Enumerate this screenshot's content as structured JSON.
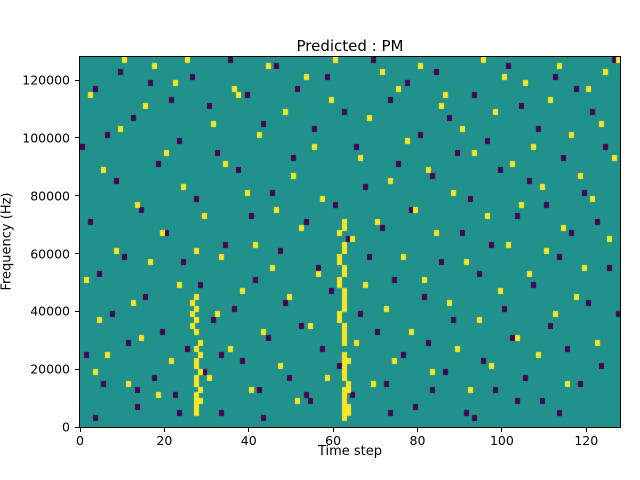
{
  "chart_data": {
    "type": "heatmap",
    "title": "Predicted : PM",
    "xlabel": "Time step",
    "ylabel": "Frequency (Hz)",
    "xlim": [
      0,
      128
    ],
    "ylim": [
      0,
      128000
    ],
    "x_ticks": [
      0,
      20,
      40,
      60,
      80,
      100,
      120
    ],
    "y_ticks": [
      0,
      20000,
      40000,
      60000,
      80000,
      100000,
      120000
    ],
    "grid": {
      "cols": 128,
      "rows": 64,
      "freq_step_hz": 2000
    },
    "colors": {
      "background": "#21918c",
      "high": "#fde725",
      "low": "#440154"
    },
    "legend": "none",
    "yellow_cells": [
      [
        62,
        1
      ],
      [
        62,
        2
      ],
      [
        62,
        3
      ],
      [
        62,
        4
      ],
      [
        62,
        5
      ],
      [
        62,
        6
      ],
      [
        62,
        8
      ],
      [
        62,
        9
      ],
      [
        62,
        10
      ],
      [
        62,
        11
      ],
      [
        62,
        12
      ],
      [
        62,
        14
      ],
      [
        62,
        15
      ],
      [
        62,
        16
      ],
      [
        62,
        17
      ],
      [
        62,
        20
      ],
      [
        62,
        21
      ],
      [
        62,
        22
      ],
      [
        62,
        23
      ],
      [
        62,
        26
      ],
      [
        62,
        27
      ],
      [
        62,
        30
      ],
      [
        62,
        31
      ],
      [
        62,
        34
      ],
      [
        62,
        35
      ],
      [
        61,
        18
      ],
      [
        61,
        19
      ],
      [
        61,
        24
      ],
      [
        61,
        25
      ],
      [
        61,
        28
      ],
      [
        61,
        29
      ],
      [
        61,
        33
      ],
      [
        63,
        2
      ],
      [
        63,
        3
      ],
      [
        63,
        6
      ],
      [
        63,
        7
      ],
      [
        63,
        11
      ],
      [
        27,
        2
      ],
      [
        27,
        3
      ],
      [
        27,
        4
      ],
      [
        27,
        5
      ],
      [
        27,
        7
      ],
      [
        27,
        8
      ],
      [
        27,
        10
      ],
      [
        27,
        11
      ],
      [
        27,
        13
      ],
      [
        27,
        16
      ],
      [
        27,
        18
      ],
      [
        27,
        20
      ],
      [
        27,
        22
      ],
      [
        27,
        30
      ],
      [
        28,
        4
      ],
      [
        28,
        6
      ],
      [
        28,
        9
      ],
      [
        28,
        12
      ],
      [
        28,
        14
      ],
      [
        26,
        17
      ],
      [
        26,
        19
      ],
      [
        26,
        21
      ],
      [
        1,
        25
      ],
      [
        2,
        57
      ],
      [
        3,
        9
      ],
      [
        4,
        18
      ],
      [
        5,
        44
      ],
      [
        6,
        12
      ],
      [
        8,
        30
      ],
      [
        9,
        51
      ],
      [
        10,
        63
      ],
      [
        11,
        7
      ],
      [
        12,
        21
      ],
      [
        13,
        38
      ],
      [
        14,
        15
      ],
      [
        15,
        55
      ],
      [
        16,
        28
      ],
      [
        17,
        62
      ],
      [
        18,
        5
      ],
      [
        19,
        33
      ],
      [
        20,
        47
      ],
      [
        21,
        11
      ],
      [
        22,
        59
      ],
      [
        23,
        24
      ],
      [
        24,
        41
      ],
      [
        25,
        63
      ],
      [
        29,
        36
      ],
      [
        30,
        8
      ],
      [
        31,
        52
      ],
      [
        32,
        19
      ],
      [
        33,
        29
      ],
      [
        34,
        45
      ],
      [
        35,
        13
      ],
      [
        36,
        58
      ],
      [
        37,
        57
      ],
      [
        38,
        23
      ],
      [
        39,
        40
      ],
      [
        40,
        6
      ],
      [
        41,
        31
      ],
      [
        42,
        50
      ],
      [
        43,
        16
      ],
      [
        44,
        62
      ],
      [
        45,
        27
      ],
      [
        46,
        37
      ],
      [
        47,
        10
      ],
      [
        48,
        54
      ],
      [
        49,
        22
      ],
      [
        50,
        43
      ],
      [
        51,
        4
      ],
      [
        52,
        34
      ],
      [
        53,
        60
      ],
      [
        54,
        17
      ],
      [
        55,
        48
      ],
      [
        56,
        26
      ],
      [
        57,
        39
      ],
      [
        58,
        8
      ],
      [
        59,
        56
      ],
      [
        60,
        63
      ],
      [
        64,
        32
      ],
      [
        65,
        14
      ],
      [
        66,
        46
      ],
      [
        67,
        24
      ],
      [
        68,
        53
      ],
      [
        69,
        7
      ],
      [
        70,
        35
      ],
      [
        71,
        61
      ],
      [
        72,
        20
      ],
      [
        73,
        42
      ],
      [
        74,
        11
      ],
      [
        75,
        58
      ],
      [
        76,
        29
      ],
      [
        77,
        49
      ],
      [
        78,
        16
      ],
      [
        79,
        37
      ],
      [
        80,
        62
      ],
      [
        81,
        25
      ],
      [
        82,
        44
      ],
      [
        83,
        9
      ],
      [
        84,
        33
      ],
      [
        85,
        55
      ],
      [
        86,
        57
      ],
      [
        87,
        21
      ],
      [
        88,
        40
      ],
      [
        89,
        13
      ],
      [
        90,
        51
      ],
      [
        91,
        28
      ],
      [
        92,
        6
      ],
      [
        93,
        47
      ],
      [
        94,
        18
      ],
      [
        95,
        63
      ],
      [
        96,
        36
      ],
      [
        97,
        10
      ],
      [
        98,
        54
      ],
      [
        99,
        23
      ],
      [
        100,
        60
      ],
      [
        101,
        31
      ],
      [
        102,
        45
      ],
      [
        103,
        15
      ],
      [
        104,
        38
      ],
      [
        105,
        59
      ],
      [
        106,
        26
      ],
      [
        107,
        48
      ],
      [
        108,
        12
      ],
      [
        109,
        41
      ],
      [
        110,
        30
      ],
      [
        111,
        56
      ],
      [
        112,
        19
      ],
      [
        113,
        62
      ],
      [
        114,
        34
      ],
      [
        115,
        7
      ],
      [
        116,
        50
      ],
      [
        117,
        22
      ],
      [
        118,
        43
      ],
      [
        119,
        27
      ],
      [
        120,
        58
      ],
      [
        121,
        39
      ],
      [
        122,
        14
      ],
      [
        123,
        52
      ],
      [
        124,
        61
      ],
      [
        125,
        32
      ],
      [
        126,
        46
      ],
      [
        127,
        63
      ]
    ],
    "purple_cells": [
      [
        0,
        48
      ],
      [
        1,
        12
      ],
      [
        2,
        35
      ],
      [
        3,
        58
      ],
      [
        4,
        26
      ],
      [
        5,
        7
      ],
      [
        6,
        50
      ],
      [
        7,
        19
      ],
      [
        8,
        42
      ],
      [
        9,
        61
      ],
      [
        10,
        29
      ],
      [
        11,
        14
      ],
      [
        12,
        53
      ],
      [
        13,
        3
      ],
      [
        14,
        37
      ],
      [
        15,
        22
      ],
      [
        16,
        59
      ],
      [
        17,
        8
      ],
      [
        18,
        45
      ],
      [
        19,
        16
      ],
      [
        20,
        33
      ],
      [
        21,
        56
      ],
      [
        22,
        5
      ],
      [
        23,
        49
      ],
      [
        24,
        28
      ],
      [
        25,
        13
      ],
      [
        26,
        60
      ],
      [
        27,
        39
      ],
      [
        28,
        24
      ],
      [
        29,
        9
      ],
      [
        30,
        55
      ],
      [
        31,
        18
      ],
      [
        32,
        47
      ],
      [
        33,
        2
      ],
      [
        34,
        31
      ],
      [
        35,
        63
      ],
      [
        36,
        20
      ],
      [
        37,
        44
      ],
      [
        38,
        11
      ],
      [
        39,
        57
      ],
      [
        40,
        36
      ],
      [
        41,
        25
      ],
      [
        42,
        6
      ],
      [
        43,
        52
      ],
      [
        44,
        15
      ],
      [
        45,
        40
      ],
      [
        46,
        62
      ],
      [
        47,
        30
      ],
      [
        48,
        21
      ],
      [
        49,
        8
      ],
      [
        50,
        46
      ],
      [
        51,
        58
      ],
      [
        52,
        17
      ],
      [
        53,
        35
      ],
      [
        54,
        4
      ],
      [
        55,
        51
      ],
      [
        56,
        27
      ],
      [
        57,
        13
      ],
      [
        58,
        60
      ],
      [
        59,
        23
      ],
      [
        60,
        38
      ],
      [
        61,
        10
      ],
      [
        62,
        54
      ],
      [
        63,
        32
      ],
      [
        64,
        5
      ],
      [
        65,
        48
      ],
      [
        66,
        19
      ],
      [
        67,
        41
      ],
      [
        68,
        29
      ],
      [
        69,
        63
      ],
      [
        70,
        16
      ],
      [
        71,
        34
      ],
      [
        72,
        7
      ],
      [
        73,
        56
      ],
      [
        74,
        25
      ],
      [
        75,
        45
      ],
      [
        76,
        12
      ],
      [
        77,
        59
      ],
      [
        78,
        37
      ],
      [
        79,
        3
      ],
      [
        80,
        50
      ],
      [
        81,
        22
      ],
      [
        82,
        14
      ],
      [
        83,
        43
      ],
      [
        84,
        61
      ],
      [
        85,
        28
      ],
      [
        86,
        9
      ],
      [
        87,
        53
      ],
      [
        88,
        18
      ],
      [
        89,
        47
      ],
      [
        90,
        33
      ],
      [
        91,
        2
      ],
      [
        92,
        39
      ],
      [
        93,
        57
      ],
      [
        94,
        26
      ],
      [
        95,
        11
      ],
      [
        96,
        49
      ],
      [
        97,
        31
      ],
      [
        98,
        6
      ],
      [
        99,
        44
      ],
      [
        100,
        20
      ],
      [
        101,
        62
      ],
      [
        102,
        15
      ],
      [
        103,
        36
      ],
      [
        104,
        55
      ],
      [
        105,
        8
      ],
      [
        106,
        42
      ],
      [
        107,
        24
      ],
      [
        108,
        51
      ],
      [
        109,
        4
      ],
      [
        110,
        38
      ],
      [
        111,
        17
      ],
      [
        112,
        60
      ],
      [
        113,
        29
      ],
      [
        114,
        46
      ],
      [
        115,
        13
      ],
      [
        116,
        33
      ],
      [
        117,
        58
      ],
      [
        118,
        7
      ],
      [
        119,
        40
      ],
      [
        120,
        21
      ],
      [
        121,
        54
      ],
      [
        122,
        35
      ],
      [
        123,
        10
      ],
      [
        124,
        48
      ],
      [
        125,
        27
      ],
      [
        126,
        63
      ],
      [
        127,
        19
      ],
      [
        3,
        1
      ],
      [
        13,
        6
      ],
      [
        23,
        2
      ],
      [
        33,
        12
      ],
      [
        43,
        1
      ],
      [
        53,
        5
      ],
      [
        63,
        3
      ],
      [
        73,
        2
      ],
      [
        83,
        6
      ],
      [
        93,
        1
      ],
      [
        103,
        4
      ],
      [
        113,
        2
      ]
    ]
  }
}
